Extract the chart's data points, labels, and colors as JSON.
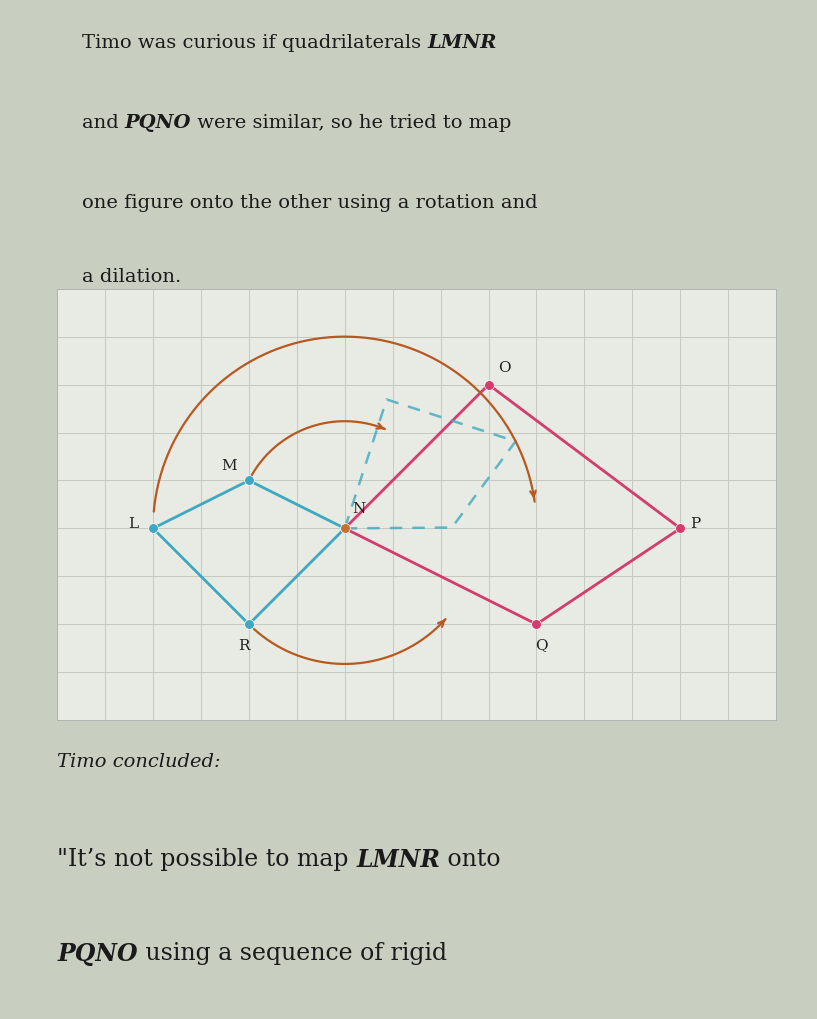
{
  "bg_top": "#c8cfc0",
  "bg_main": "#dde0d8",
  "bg_bottom": "#dde0d8",
  "grid_color": "#c4c8be",
  "panel_bg": "#e8ebe4",
  "LMNR_color": "#3fa8c0",
  "PQNO_color": "#d63b6e",
  "N_color": "#c87030",
  "arc_color": "#b85820",
  "dashed_color": "#3fa8c0",
  "text_color": "#1a1a1a",
  "points": {
    "L": [
      -4,
      0
    ],
    "M": [
      -2,
      1
    ],
    "N": [
      0,
      0
    ],
    "R": [
      -2,
      -2
    ],
    "O": [
      3,
      3
    ],
    "P": [
      7,
      0
    ],
    "Q": [
      4,
      -2
    ]
  },
  "xlim": [
    -6,
    9
  ],
  "ylim": [
    -4,
    5
  ]
}
